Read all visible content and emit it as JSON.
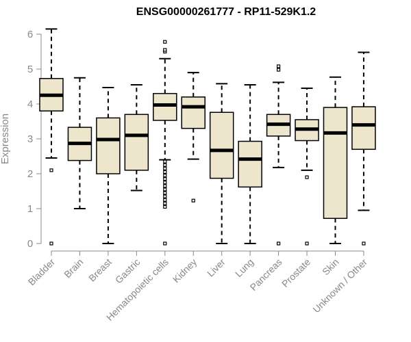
{
  "chart_data": {
    "type": "boxplot",
    "title": "ENSG00000261777 - RP11-529K1.2",
    "ylabel": "Expression",
    "xlabel": "",
    "ylim": [
      0,
      6.2
    ],
    "yticks": [
      0,
      1,
      2,
      3,
      4,
      5,
      6
    ],
    "ytick_labels": [
      "0",
      "1",
      "2",
      "3",
      "4",
      "5",
      "6"
    ],
    "grid": false,
    "legend": "none",
    "colors": {
      "box_fill": "#ede6cc",
      "stroke": "#000000",
      "axis_text": "#888888"
    },
    "categories": [
      "Bladder",
      "Brain",
      "Breast",
      "Gastric",
      "Hematopoietic cells",
      "Kidney",
      "Liver",
      "Lung",
      "Pancreas",
      "Prostate",
      "Skin",
      "Unknown / Other"
    ],
    "boxes": [
      {
        "label": "Bladder",
        "whisker_low": 2.45,
        "q1": 3.8,
        "median": 4.25,
        "q3": 4.73,
        "whisker_high": 6.15,
        "outliers": [
          2.1,
          0.0
        ]
      },
      {
        "label": "Brain",
        "whisker_low": 1.0,
        "q1": 2.38,
        "median": 2.87,
        "q3": 3.33,
        "whisker_high": 4.75,
        "outliers": []
      },
      {
        "label": "Breast",
        "whisker_low": 0.0,
        "q1": 2.0,
        "median": 2.98,
        "q3": 3.6,
        "whisker_high": 4.47,
        "outliers": []
      },
      {
        "label": "Gastric",
        "whisker_low": 1.52,
        "q1": 2.1,
        "median": 3.1,
        "q3": 3.7,
        "whisker_high": 4.55,
        "outliers": []
      },
      {
        "label": "Hematopoietic cells",
        "whisker_low": 2.4,
        "q1": 3.53,
        "median": 3.97,
        "q3": 4.3,
        "whisker_high": 5.3,
        "outliers": [
          5.5,
          5.55,
          5.78,
          2.35,
          2.25,
          2.15,
          2.05,
          1.95,
          1.85,
          1.75,
          1.65,
          1.55,
          1.45,
          1.35,
          1.25,
          1.15,
          1.05,
          0.0
        ]
      },
      {
        "label": "Kidney",
        "whisker_low": 2.42,
        "q1": 3.3,
        "median": 3.92,
        "q3": 4.2,
        "whisker_high": 4.9,
        "outliers": [
          1.23
        ]
      },
      {
        "label": "Liver",
        "whisker_low": 0.0,
        "q1": 1.87,
        "median": 2.67,
        "q3": 3.76,
        "whisker_high": 4.58,
        "outliers": []
      },
      {
        "label": "Lung",
        "whisker_low": 0.0,
        "q1": 1.62,
        "median": 2.42,
        "q3": 2.93,
        "whisker_high": 4.55,
        "outliers": []
      },
      {
        "label": "Pancreas",
        "whisker_low": 2.18,
        "q1": 3.08,
        "median": 3.42,
        "q3": 3.7,
        "whisker_high": 4.62,
        "outliers": [
          4.98,
          5.08,
          0.0
        ]
      },
      {
        "label": "Prostate",
        "whisker_low": 2.1,
        "q1": 2.95,
        "median": 3.28,
        "q3": 3.55,
        "whisker_high": 4.45,
        "outliers": [
          1.9,
          0.0
        ]
      },
      {
        "label": "Skin",
        "whisker_low": 0.0,
        "q1": 0.72,
        "median": 3.17,
        "q3": 3.9,
        "whisker_high": 4.77,
        "outliers": []
      },
      {
        "label": "Unknown / Other",
        "whisker_low": 0.95,
        "q1": 2.7,
        "median": 3.4,
        "q3": 3.92,
        "whisker_high": 5.48,
        "outliers": [
          0.0
        ]
      }
    ]
  }
}
